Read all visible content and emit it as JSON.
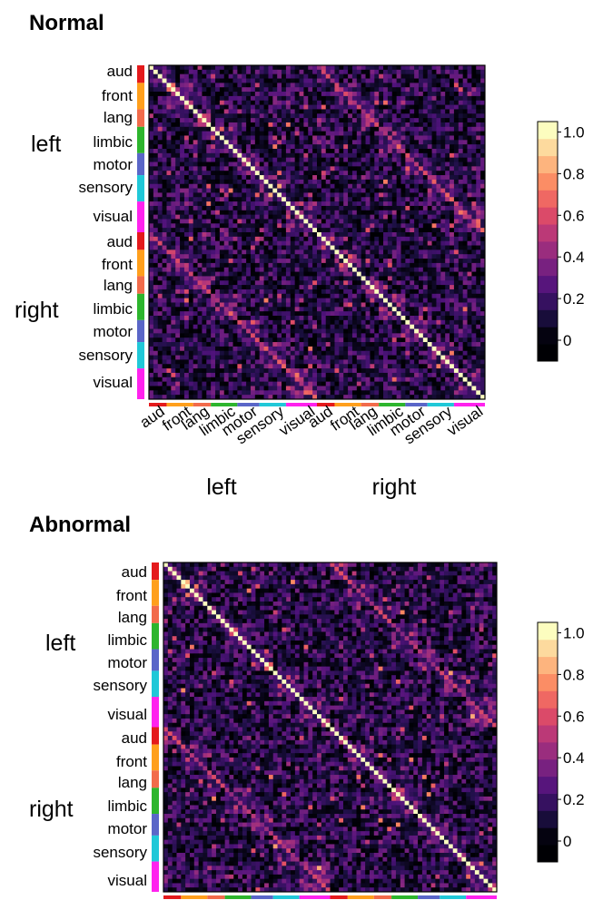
{
  "chart_data": [
    {
      "type": "heatmap",
      "title": "Normal",
      "row_groups": [
        {
          "hemisphere": "left",
          "networks": [
            "aud",
            "front",
            "lang",
            "limbic",
            "motor",
            "sensory",
            "visual"
          ]
        },
        {
          "hemisphere": "right",
          "networks": [
            "aud",
            "front",
            "lang",
            "limbic",
            "motor",
            "sensory",
            "visual"
          ]
        }
      ],
      "column_groups": [
        {
          "hemisphere": "left",
          "networks": [
            "aud",
            "front",
            "lang",
            "limbic",
            "motor",
            "sensory",
            "visual"
          ]
        },
        {
          "hemisphere": "right",
          "networks": [
            "aud",
            "front",
            "lang",
            "limbic",
            "motor",
            "sensory",
            "visual"
          ]
        }
      ],
      "diagonal_value": 1.0,
      "mirror_diagonal_value": 0.55,
      "background_range": [
        0.0,
        0.35
      ],
      "colorbar": {
        "ticks": [
          "0",
          "0.2",
          "0.4",
          "0.6",
          "0.8",
          "1.0"
        ],
        "min": -0.1,
        "max": 1.05
      },
      "column_axis_shown": true
    },
    {
      "type": "heatmap",
      "title": "Abnormal",
      "row_groups": [
        {
          "hemisphere": "left",
          "networks": [
            "aud",
            "front",
            "lang",
            "limbic",
            "motor",
            "sensory",
            "visual"
          ]
        },
        {
          "hemisphere": "right",
          "networks": [
            "aud",
            "front",
            "lang",
            "limbic",
            "motor",
            "sensory",
            "visual"
          ]
        }
      ],
      "diagonal_value": 1.0,
      "mirror_diagonal_value": 0.5,
      "background_range": [
        0.0,
        0.35
      ],
      "colorbar": {
        "ticks": [
          "0",
          "0.2",
          "0.4",
          "0.6",
          "0.8",
          "1.0"
        ],
        "min": -0.1,
        "max": 1.05
      },
      "column_axis_shown": false
    }
  ],
  "network_colors": {
    "aud": "#e41a1c",
    "front": "#ff9f1c",
    "lang": "#f26b4b",
    "limbic": "#2db52d",
    "motor": "#5a66c8",
    "sensory": "#20c8d8",
    "visual": "#ff22ee"
  },
  "network_sizes": [
    4,
    6,
    4,
    6,
    5,
    6,
    7
  ],
  "colormap": [
    "#000004",
    "#1c1044",
    "#4f127b",
    "#812581",
    "#b5367a",
    "#e55064",
    "#fb8761",
    "#fec287",
    "#fcfdbf"
  ]
}
